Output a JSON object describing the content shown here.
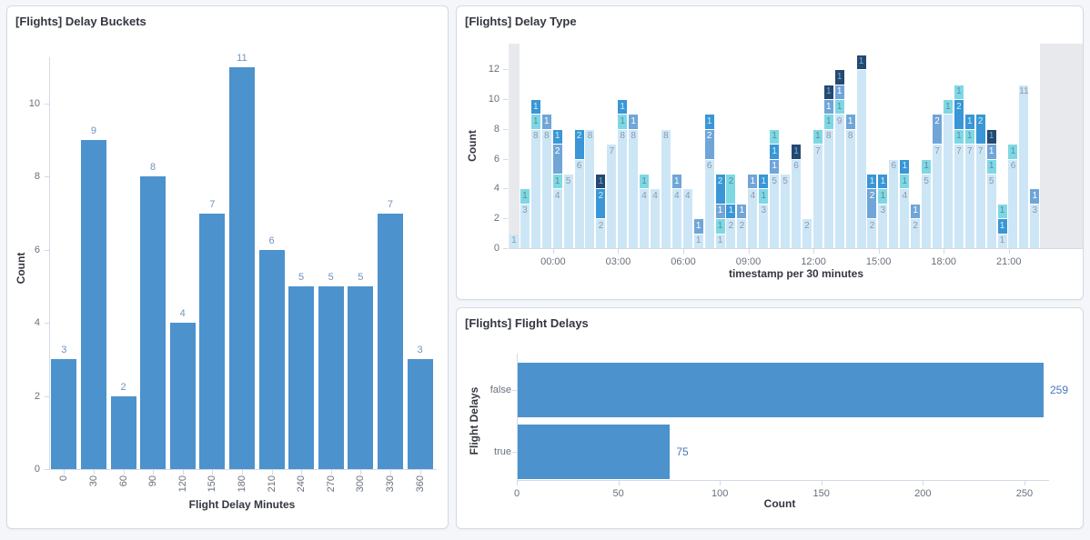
{
  "style": {
    "page_bg": "#f4f6fa",
    "panel_border": "#d3dae6",
    "axis_line": "#d3dae6",
    "tick_text": "#69707d",
    "axis_title_text": "#343741",
    "bar_blue": "#4c92cd"
  },
  "chart_data": [
    {
      "type": "bar",
      "title": "[Flights] Delay Buckets",
      "xlabel": "Flight Delay Minutes",
      "ylabel": "Count",
      "categories": [
        "0",
        "30",
        "60",
        "90",
        "120",
        "150",
        "180",
        "210",
        "240",
        "270",
        "300",
        "330",
        "360"
      ],
      "values": [
        3,
        9,
        2,
        8,
        4,
        7,
        11,
        6,
        5,
        5,
        5,
        7,
        3
      ],
      "yticks": [
        0,
        2,
        4,
        6,
        8,
        10
      ],
      "ylim": [
        0,
        11.3
      ],
      "grid": false,
      "bar_color": "#4c92cd",
      "value_label_color": "#7091c2"
    },
    {
      "type": "bar",
      "stacked": true,
      "title": "[Flights] Delay Type",
      "xlabel": "timestamp per 30 minutes",
      "ylabel": "Count",
      "yticks": [
        0,
        2,
        4,
        6,
        8,
        10,
        12
      ],
      "ylim": [
        0,
        13.7
      ],
      "grid": false,
      "legend": "hidden",
      "palette": {
        "c0": "#cde6f6",
        "c1": "#7ed8e4",
        "c2": "#70a5d8",
        "c3": "#3a96d6",
        "c4": "#25496f"
      },
      "label_colors": {
        "c0": "#8a99ad",
        "c1": "#5f8a9e",
        "c2": "#ffffff",
        "c3": "#c9f2f6",
        "c4": "#74aee3"
      },
      "partial_bucket_color": "#e7e9ed",
      "slots_total": 53,
      "partial_regions": [
        {
          "from_slot": 0,
          "to_slot": 1
        },
        {
          "from_slot": 49,
          "to_slot": 53
        }
      ],
      "xticks": [
        {
          "label": "00:00",
          "slot": 3.6
        },
        {
          "label": "03:00",
          "slot": 9.6
        },
        {
          "label": "06:00",
          "slot": 15.6
        },
        {
          "label": "09:00",
          "slot": 21.6
        },
        {
          "label": "12:00",
          "slot": 27.6
        },
        {
          "label": "15:00",
          "slot": 33.6
        },
        {
          "label": "18:00",
          "slot": 39.6
        },
        {
          "label": "21:00",
          "slot": 45.6
        }
      ],
      "bars": [
        {
          "slot": 0,
          "segments": [
            {
              "v": 1,
              "c": "c0"
            }
          ]
        },
        {
          "slot": 1,
          "segments": [
            {
              "v": 3,
              "c": "c0"
            },
            {
              "v": 1,
              "c": "c1"
            }
          ]
        },
        {
          "slot": 2,
          "segments": [
            {
              "v": 8,
              "c": "c0"
            },
            {
              "v": 1,
              "c": "c1"
            },
            {
              "v": 1,
              "c": "c3"
            }
          ]
        },
        {
          "slot": 3,
          "segments": [
            {
              "v": 8,
              "c": "c0"
            },
            {
              "v": 1,
              "c": "c2"
            }
          ]
        },
        {
          "slot": 4,
          "segments": [
            {
              "v": 4,
              "c": "c0"
            },
            {
              "v": 1,
              "c": "c1"
            },
            {
              "v": 2,
              "c": "c2"
            },
            {
              "v": 1,
              "c": "c3"
            }
          ]
        },
        {
          "slot": 5,
          "segments": [
            {
              "v": 5,
              "c": "c0"
            }
          ]
        },
        {
          "slot": 6,
          "segments": [
            {
              "v": 6,
              "c": "c0"
            },
            {
              "v": 2,
              "c": "c3"
            }
          ]
        },
        {
          "slot": 7,
          "segments": [
            {
              "v": 8,
              "c": "c0"
            }
          ]
        },
        {
          "slot": 8,
          "segments": [
            {
              "v": 2,
              "c": "c0"
            },
            {
              "v": 2,
              "c": "c3"
            },
            {
              "v": 1,
              "c": "c4"
            }
          ]
        },
        {
          "slot": 9,
          "segments": [
            {
              "v": 7,
              "c": "c0"
            }
          ]
        },
        {
          "slot": 10,
          "segments": [
            {
              "v": 8,
              "c": "c0"
            },
            {
              "v": 1,
              "c": "c1"
            },
            {
              "v": 1,
              "c": "c3"
            }
          ]
        },
        {
          "slot": 11,
          "segments": [
            {
              "v": 8,
              "c": "c0"
            },
            {
              "v": 1,
              "c": "c2"
            }
          ]
        },
        {
          "slot": 12,
          "segments": [
            {
              "v": 4,
              "c": "c0"
            },
            {
              "v": 1,
              "c": "c1"
            }
          ]
        },
        {
          "slot": 13,
          "segments": [
            {
              "v": 4,
              "c": "c0"
            }
          ]
        },
        {
          "slot": 14,
          "segments": [
            {
              "v": 8,
              "c": "c0"
            }
          ]
        },
        {
          "slot": 15,
          "segments": [
            {
              "v": 4,
              "c": "c0"
            },
            {
              "v": 1,
              "c": "c2"
            }
          ]
        },
        {
          "slot": 16,
          "segments": [
            {
              "v": 4,
              "c": "c0"
            }
          ]
        },
        {
          "slot": 17,
          "segments": [
            {
              "v": 1,
              "c": "c0"
            },
            {
              "v": 1,
              "c": "c2"
            }
          ]
        },
        {
          "slot": 18,
          "segments": [
            {
              "v": 6,
              "c": "c0"
            },
            {
              "v": 2,
              "c": "c2"
            },
            {
              "v": 1,
              "c": "c3"
            }
          ]
        },
        {
          "slot": 19,
          "segments": [
            {
              "v": 1,
              "c": "c0"
            },
            {
              "v": 1,
              "c": "c1"
            },
            {
              "v": 1,
              "c": "c2"
            },
            {
              "v": 2,
              "c": "c3"
            }
          ]
        },
        {
          "slot": 20,
          "segments": [
            {
              "v": 2,
              "c": "c0"
            },
            {
              "v": 1,
              "c": "c3"
            },
            {
              "v": 2,
              "c": "c1"
            }
          ]
        },
        {
          "slot": 21,
          "segments": [
            {
              "v": 2,
              "c": "c0"
            },
            {
              "v": 1,
              "c": "c2"
            }
          ]
        },
        {
          "slot": 22,
          "segments": [
            {
              "v": 4,
              "c": "c0"
            },
            {
              "v": 1,
              "c": "c2"
            }
          ]
        },
        {
          "slot": 23,
          "segments": [
            {
              "v": 3,
              "c": "c0"
            },
            {
              "v": 1,
              "c": "c1"
            },
            {
              "v": 1,
              "c": "c3"
            }
          ]
        },
        {
          "slot": 24,
          "segments": [
            {
              "v": 5,
              "c": "c0"
            },
            {
              "v": 1,
              "c": "c2"
            },
            {
              "v": 1,
              "c": "c3"
            },
            {
              "v": 1,
              "c": "c1"
            }
          ]
        },
        {
          "slot": 25,
          "segments": [
            {
              "v": 5,
              "c": "c0"
            }
          ]
        },
        {
          "slot": 26,
          "segments": [
            {
              "v": 6,
              "c": "c0"
            },
            {
              "v": 1,
              "c": "c4"
            }
          ]
        },
        {
          "slot": 27,
          "segments": [
            {
              "v": 2,
              "c": "c0"
            }
          ]
        },
        {
          "slot": 28,
          "segments": [
            {
              "v": 7,
              "c": "c0"
            },
            {
              "v": 1,
              "c": "c1"
            }
          ]
        },
        {
          "slot": 29,
          "segments": [
            {
              "v": 8,
              "c": "c0"
            },
            {
              "v": 1,
              "c": "c1"
            },
            {
              "v": 1,
              "c": "c2"
            },
            {
              "v": 1,
              "c": "c4"
            }
          ]
        },
        {
          "slot": 30,
          "segments": [
            {
              "v": 9,
              "c": "c0"
            },
            {
              "v": 1,
              "c": "c1"
            },
            {
              "v": 1,
              "c": "c2"
            },
            {
              "v": 1,
              "c": "c4"
            }
          ]
        },
        {
          "slot": 31,
          "segments": [
            {
              "v": 8,
              "c": "c0"
            },
            {
              "v": 1,
              "c": "c2"
            }
          ]
        },
        {
          "slot": 32,
          "segments": [
            {
              "v": 12,
              "c": "c0",
              "nolabel": true
            },
            {
              "v": 1,
              "c": "c4"
            }
          ]
        },
        {
          "slot": 33,
          "segments": [
            {
              "v": 2,
              "c": "c0"
            },
            {
              "v": 2,
              "c": "c2"
            },
            {
              "v": 1,
              "c": "c3"
            }
          ]
        },
        {
          "slot": 34,
          "segments": [
            {
              "v": 3,
              "c": "c0"
            },
            {
              "v": 1,
              "c": "c1"
            },
            {
              "v": 1,
              "c": "c3"
            }
          ]
        },
        {
          "slot": 35,
          "segments": [
            {
              "v": 6,
              "c": "c0"
            }
          ]
        },
        {
          "slot": 36,
          "segments": [
            {
              "v": 4,
              "c": "c0"
            },
            {
              "v": 1,
              "c": "c1"
            },
            {
              "v": 1,
              "c": "c3"
            }
          ]
        },
        {
          "slot": 37,
          "segments": [
            {
              "v": 2,
              "c": "c0"
            },
            {
              "v": 1,
              "c": "c2"
            }
          ]
        },
        {
          "slot": 38,
          "segments": [
            {
              "v": 5,
              "c": "c0"
            },
            {
              "v": 1,
              "c": "c1"
            }
          ]
        },
        {
          "slot": 39,
          "segments": [
            {
              "v": 7,
              "c": "c0"
            },
            {
              "v": 2,
              "c": "c2"
            }
          ]
        },
        {
          "slot": 40,
          "segments": [
            {
              "v": 9,
              "c": "c0",
              "nolabel": true
            },
            {
              "v": 1,
              "c": "c1"
            }
          ]
        },
        {
          "slot": 41,
          "segments": [
            {
              "v": 7,
              "c": "c0"
            },
            {
              "v": 1,
              "c": "c1"
            },
            {
              "v": 2,
              "c": "c3"
            },
            {
              "v": 1,
              "c": "c1"
            }
          ]
        },
        {
          "slot": 42,
          "segments": [
            {
              "v": 7,
              "c": "c0"
            },
            {
              "v": 1,
              "c": "c1"
            },
            {
              "v": 1,
              "c": "c3"
            }
          ]
        },
        {
          "slot": 43,
          "segments": [
            {
              "v": 7,
              "c": "c0"
            },
            {
              "v": 2,
              "c": "c3"
            }
          ]
        },
        {
          "slot": 44,
          "segments": [
            {
              "v": 5,
              "c": "c0"
            },
            {
              "v": 1,
              "c": "c1"
            },
            {
              "v": 1,
              "c": "c2"
            },
            {
              "v": 1,
              "c": "c4"
            }
          ]
        },
        {
          "slot": 45,
          "segments": [
            {
              "v": 1,
              "c": "c0"
            },
            {
              "v": 1,
              "c": "c3"
            },
            {
              "v": 1,
              "c": "c1"
            }
          ]
        },
        {
          "slot": 46,
          "segments": [
            {
              "v": 6,
              "c": "c0"
            },
            {
              "v": 1,
              "c": "c1"
            }
          ]
        },
        {
          "slot": 47,
          "segments": [
            {
              "v": 11,
              "c": "c0"
            }
          ]
        },
        {
          "slot": 48,
          "segments": [
            {
              "v": 3,
              "c": "c0"
            },
            {
              "v": 1,
              "c": "c2"
            }
          ]
        }
      ]
    },
    {
      "type": "bar",
      "orientation": "horizontal",
      "title": "[Flights] Flight Delays",
      "xlabel": "Count",
      "ylabel": "Flight Delays",
      "categories": [
        "false",
        "true"
      ],
      "values": [
        259,
        75
      ],
      "xticks": [
        0,
        50,
        100,
        150,
        200,
        250
      ],
      "xlim": [
        0,
        280
      ],
      "grid": false,
      "bar_color": "#4c92cd",
      "value_label_color": "#4678b8"
    }
  ]
}
